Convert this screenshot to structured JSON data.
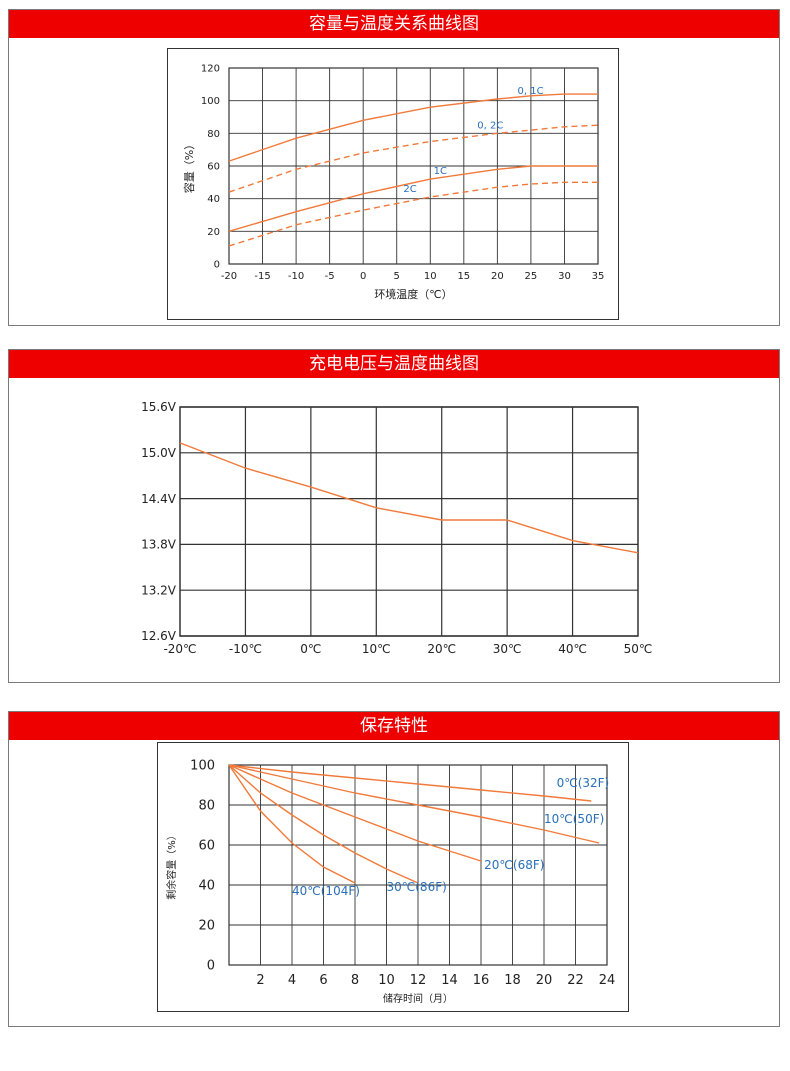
{
  "panels": [
    {
      "title": "容量与温度关系曲线图"
    },
    {
      "title": "充电电压与温度曲线图"
    },
    {
      "title": "保存特性"
    }
  ],
  "colors": {
    "header": "#ee0000",
    "curve": "#f07a3a",
    "label": "#2a6fb8",
    "grid": "#333333"
  },
  "chart_data": [
    {
      "type": "line",
      "xlabel": "环境温度（℃）",
      "ylabel": "容量（%）",
      "xlim": [
        -20,
        35
      ],
      "ylim": [
        0,
        120
      ],
      "xticks": [
        -20,
        -15,
        -10,
        -5,
        0,
        5,
        10,
        15,
        20,
        25,
        30,
        35
      ],
      "xtick_labels": [
        "-20",
        "-15",
        "-10",
        "-5",
        "0",
        "5",
        "10",
        "15",
        "20",
        "25",
        "30",
        "35"
      ],
      "yticks": [
        0,
        20,
        40,
        60,
        80,
        100,
        120
      ],
      "ytick_labels": [
        "0",
        "20",
        "40",
        "60",
        "80",
        "100",
        "120"
      ],
      "grid": true,
      "series": [
        {
          "name": "0.1C",
          "style": "solid",
          "x": [
            -20,
            -10,
            0,
            10,
            20,
            25,
            30,
            35
          ],
          "y": [
            63,
            77,
            88,
            96,
            101,
            103,
            104,
            104
          ]
        },
        {
          "name": "0.2C",
          "style": "dashed",
          "x": [
            -20,
            -10,
            0,
            10,
            20,
            25,
            30,
            35
          ],
          "y": [
            44,
            58,
            68,
            75,
            80,
            82,
            84,
            85
          ]
        },
        {
          "name": "1C",
          "style": "solid",
          "x": [
            -20,
            -10,
            0,
            10,
            20,
            25,
            30,
            35
          ],
          "y": [
            20,
            32,
            43,
            52,
            58,
            60,
            60,
            60
          ]
        },
        {
          "name": "2C",
          "style": "dashed",
          "x": [
            -20,
            -10,
            0,
            10,
            20,
            25,
            30,
            35
          ],
          "y": [
            11,
            24,
            33,
            41,
            47,
            49,
            50,
            50
          ]
        }
      ],
      "annotations": [
        {
          "text": "0, 1C",
          "x": 23,
          "y": 104
        },
        {
          "text": "0, 2C",
          "x": 17,
          "y": 83
        },
        {
          "text": "1C",
          "x": 10.5,
          "y": 55
        },
        {
          "text": "2C",
          "x": 6,
          "y": 44
        }
      ]
    },
    {
      "type": "line",
      "xlim": [
        -20,
        50
      ],
      "ylim": [
        12.6,
        15.6
      ],
      "xticks": [
        -20,
        -10,
        0,
        10,
        20,
        30,
        40,
        50
      ],
      "xtick_labels": [
        "-20℃",
        "-10℃",
        "0℃",
        "10℃",
        "20℃",
        "30℃",
        "40℃",
        "50℃"
      ],
      "yticks": [
        12.6,
        13.2,
        13.8,
        14.4,
        15.0,
        15.6
      ],
      "ytick_labels": [
        "12.6V",
        "13.2V",
        "13.8V",
        "14.4V",
        "15.0V",
        "15.6V"
      ],
      "grid": true,
      "series": [
        {
          "x": [
            -20,
            -10,
            0,
            10,
            20,
            30,
            40,
            50
          ],
          "y": [
            15.13,
            14.8,
            14.55,
            14.28,
            14.12,
            14.12,
            13.85,
            13.69
          ]
        }
      ]
    },
    {
      "type": "line",
      "xlabel": "储存时间（月）",
      "ylabel": "剩余容量（%）",
      "xlim": [
        0,
        24
      ],
      "ylim": [
        0,
        100
      ],
      "xticks": [
        2,
        4,
        6,
        8,
        10,
        12,
        14,
        16,
        18,
        20,
        22,
        24
      ],
      "xtick_labels": [
        "2",
        "4",
        "6",
        "8",
        "10",
        "12",
        "14",
        "16",
        "18",
        "20",
        "22",
        "24"
      ],
      "yticks": [
        0,
        20,
        40,
        60,
        80,
        100
      ],
      "ytick_labels": [
        "0",
        "20",
        "40",
        "60",
        "80",
        "100"
      ],
      "grid": true,
      "series": [
        {
          "name": "0℃(32F)",
          "x": [
            0,
            4,
            8,
            12,
            16,
            20,
            23
          ],
          "y": [
            100,
            96.5,
            93.5,
            90.5,
            87.5,
            84.5,
            82
          ]
        },
        {
          "name": "10℃(50F)",
          "x": [
            0,
            4,
            8,
            12,
            16,
            20,
            23.5
          ],
          "y": [
            100,
            93,
            86,
            80,
            74,
            67.5,
            61
          ]
        },
        {
          "name": "20℃(68F)",
          "x": [
            0,
            4,
            8,
            12,
            16
          ],
          "y": [
            100,
            86,
            74,
            62,
            52
          ]
        },
        {
          "name": "30℃(86F)",
          "x": [
            0,
            2,
            4,
            6,
            8,
            10,
            12
          ],
          "y": [
            100,
            86,
            75,
            65,
            56,
            48,
            41
          ]
        },
        {
          "name": "40℃(104F)",
          "x": [
            0,
            2,
            4,
            6,
            8
          ],
          "y": [
            100,
            77,
            61,
            49,
            41
          ]
        }
      ],
      "annotations": [
        {
          "text": "0℃(32F)",
          "x": 20.8,
          "y": 89
        },
        {
          "text": "10℃(50F)",
          "x": 20,
          "y": 71
        },
        {
          "text": "20℃(68F)",
          "x": 16.2,
          "y": 48
        },
        {
          "text": "30℃(86F)",
          "x": 10,
          "y": 37
        },
        {
          "text": "40℃(104F)",
          "x": 4,
          "y": 35
        }
      ]
    }
  ]
}
